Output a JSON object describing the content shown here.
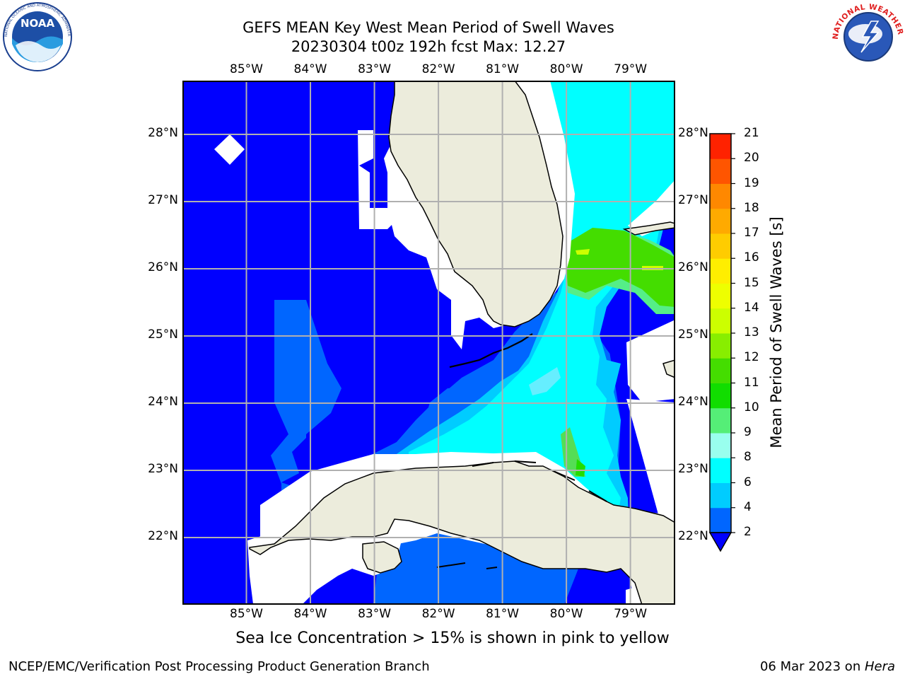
{
  "title": {
    "line1": "GEFS MEAN Key West Mean Period of Swell Waves",
    "line2": "20230304 t00z 192h fcst   Max: 12.27"
  },
  "map": {
    "longitude_labels": [
      "85°W",
      "84°W",
      "83°W",
      "82°W",
      "81°W",
      "80°W",
      "79°W"
    ],
    "latitude_labels": [
      "28°N",
      "27°N",
      "26°N",
      "25°N",
      "24°N",
      "23°N",
      "22°N"
    ],
    "lon_range": [
      -86.0,
      -78.3
    ],
    "lat_range": [
      21.0,
      28.8
    ],
    "grid": true,
    "land_color": "#ececdc",
    "ocean_low_color": "#0000ff",
    "colors": {
      "c2_4": "#0066ff",
      "c4_6": "#00ccff",
      "c6_8": "#00ffff",
      "c8_9": "#66ffcc",
      "c9_10": "#55ee77",
      "c10_11": "#22dd00",
      "c11_12": "#55dd00",
      "c12_13": "#ccff00"
    }
  },
  "colorbar": {
    "label": "Mean Period of Swell Waves [s]",
    "ticks": [
      "21",
      "20",
      "19",
      "18",
      "17",
      "16",
      "15",
      "14",
      "13",
      "12",
      "11",
      "10",
      "9",
      "8",
      "6",
      "4",
      "2"
    ],
    "levels": [
      2,
      4,
      6,
      8,
      9,
      10,
      11,
      12,
      13,
      14,
      15,
      16,
      17,
      18,
      19,
      20,
      21
    ],
    "colors": [
      "#0066ff",
      "#00ccff",
      "#00ffff",
      "#99ffee",
      "#55ee77",
      "#11dd00",
      "#44dd00",
      "#88ee00",
      "#ccff00",
      "#eeff00",
      "#ffee00",
      "#ffcc00",
      "#ffaa00",
      "#ff8800",
      "#ff5500",
      "#ff2200"
    ],
    "below_color": "#0000ff"
  },
  "notes": {
    "ice": "Sea Ice Concentration > 15% is shown in pink to yellow"
  },
  "footer": {
    "left": "NCEP/EMC/Verification Post Processing Product Generation Branch",
    "right_date": "06 Mar 2023 on ",
    "right_host": "Hera"
  },
  "logos": {
    "noaa": "NOAA",
    "noaa_ring": "NATIONAL OCEANIC AND ATMOSPHERIC ADMINISTRATION · U.S. DEPARTMENT OF COMMERCE",
    "nws": "NATIONAL WEATHER SERVICE"
  }
}
